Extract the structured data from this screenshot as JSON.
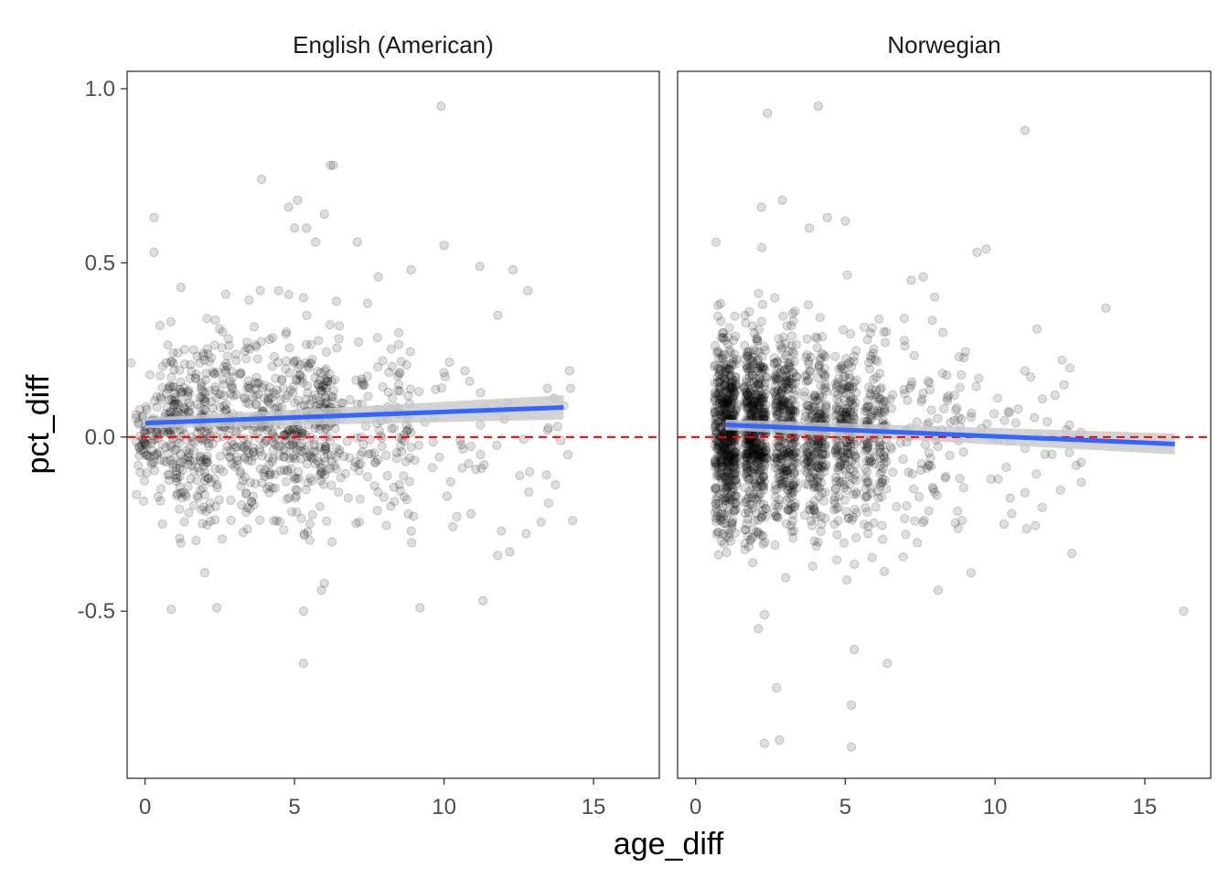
{
  "chart_data": {
    "type": "scatter",
    "xlabel": "age_diff",
    "ylabel": "pct_diff",
    "xlim": [
      -0.6,
      17.2
    ],
    "ylim": [
      -0.98,
      1.05
    ],
    "x_ticks": [
      "0",
      "5",
      "10",
      "15"
    ],
    "y_ticks": [
      "-0.5",
      "0.0",
      "0.5",
      "1.0"
    ],
    "reference_line": {
      "y": 0.0,
      "color": "#ff0000",
      "style": "dashed"
    },
    "fit_color": "#3366ff",
    "band_color": "#c8c8c8",
    "point_color": "#000000",
    "panels": [
      {
        "name": "English (American)",
        "fit": {
          "x": [
            0,
            14
          ],
          "y": [
            0.04,
            0.085
          ]
        },
        "band": {
          "x": [
            0,
            14
          ],
          "y_low": [
            0.025,
            0.05
          ],
          "y_high": [
            0.055,
            0.12
          ]
        },
        "points_sample": [
          [
            9.9,
            0.95
          ],
          [
            6.2,
            0.78
          ],
          [
            6.3,
            0.78
          ],
          [
            3.9,
            0.74
          ],
          [
            5.1,
            0.68
          ],
          [
            4.8,
            0.66
          ],
          [
            6.0,
            0.64
          ],
          [
            0.3,
            0.63
          ],
          [
            5.0,
            0.6
          ],
          [
            5.4,
            0.6
          ],
          [
            5.7,
            0.56
          ],
          [
            10.0,
            0.55
          ],
          [
            7.1,
            0.56
          ],
          [
            0.3,
            0.53
          ],
          [
            11.2,
            0.49
          ],
          [
            12.3,
            0.48
          ],
          [
            8.9,
            0.48
          ],
          [
            7.8,
            0.46
          ],
          [
            12.8,
            0.42
          ],
          [
            1.2,
            0.43
          ],
          [
            2.7,
            0.41
          ],
          [
            5.3,
            0.4
          ],
          [
            6.4,
            0.39
          ],
          [
            0.5,
            0.32
          ],
          [
            11.8,
            0.35
          ],
          [
            10.7,
            0.19
          ],
          [
            14.2,
            0.19
          ],
          [
            13.8,
            0.03
          ],
          [
            13.9,
            -0.01
          ],
          [
            9.2,
            -0.49
          ],
          [
            5.3,
            -0.5
          ],
          [
            2.4,
            -0.49
          ],
          [
            5.3,
            -0.65
          ],
          [
            11.3,
            -0.47
          ],
          [
            12.2,
            -0.33
          ],
          [
            11.8,
            -0.34
          ],
          [
            8.9,
            -0.27
          ],
          [
            13.5,
            -0.19
          ],
          [
            14.3,
            -0.24
          ],
          [
            6.0,
            -0.42
          ],
          [
            5.9,
            -0.44
          ],
          [
            2.0,
            -0.39
          ],
          [
            10.1,
            -0.17
          ],
          [
            10.9,
            -0.22
          ]
        ]
      },
      {
        "name": "Norwegian",
        "fit": {
          "x": [
            1,
            16
          ],
          "y": [
            0.035,
            -0.02
          ]
        },
        "band": {
          "x": [
            1,
            16
          ],
          "y_low": [
            0.02,
            -0.05
          ],
          "y_high": [
            0.05,
            0.01
          ]
        },
        "points_sample": [
          [
            4.1,
            0.95
          ],
          [
            2.4,
            0.93
          ],
          [
            11.0,
            0.88
          ],
          [
            2.2,
            0.66
          ],
          [
            2.9,
            0.68
          ],
          [
            4.4,
            0.63
          ],
          [
            5.0,
            0.62
          ],
          [
            3.8,
            0.6
          ],
          [
            9.4,
            0.53
          ],
          [
            9.7,
            0.54
          ],
          [
            13.7,
            0.37
          ],
          [
            11.4,
            0.31
          ],
          [
            7.6,
            0.46
          ],
          [
            7.2,
            0.45
          ],
          [
            11.0,
            0.19
          ],
          [
            12.3,
            0.15
          ],
          [
            12.0,
            0.12
          ],
          [
            16.3,
            -0.5
          ],
          [
            5.3,
            -0.61
          ],
          [
            5.2,
            -0.77
          ],
          [
            5.2,
            -0.89
          ],
          [
            2.3,
            -0.88
          ],
          [
            2.8,
            -0.87
          ],
          [
            2.7,
            -0.72
          ],
          [
            6.4,
            -0.65
          ],
          [
            2.1,
            -0.55
          ],
          [
            2.3,
            -0.51
          ],
          [
            9.2,
            -0.39
          ],
          [
            8.1,
            -0.44
          ],
          [
            10.3,
            -0.25
          ],
          [
            11.0,
            -0.16
          ],
          [
            11.9,
            -0.05
          ]
        ]
      }
    ]
  }
}
